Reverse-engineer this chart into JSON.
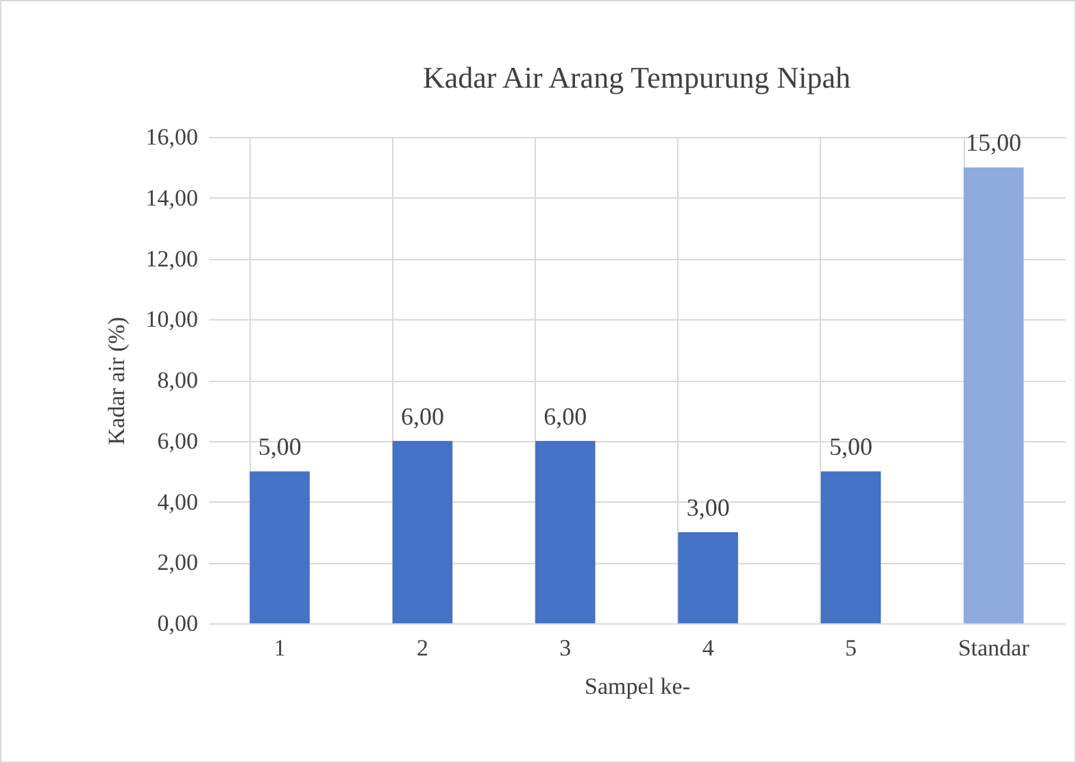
{
  "chart_data": {
    "type": "bar",
    "title": "Kadar Air Arang Tempurung Nipah",
    "xlabel": "Sampel ke-",
    "ylabel": "Kadar air (%)",
    "categories": [
      "1",
      "2",
      "3",
      "4",
      "5",
      "Standar"
    ],
    "values": [
      5,
      6,
      6,
      3,
      5,
      15
    ],
    "colors": [
      "#4472c4",
      "#4472c4",
      "#4472c4",
      "#4472c4",
      "#4472c4",
      "#8faadc"
    ],
    "value_labels": [
      "5,00",
      "6,00",
      "6,00",
      "3,00",
      "5,00",
      "15,00"
    ],
    "ylim": [
      0,
      16
    ],
    "yticks": [
      {
        "value": 0,
        "label": "0,00"
      },
      {
        "value": 2,
        "label": "2,00"
      },
      {
        "value": 4,
        "label": "4,00"
      },
      {
        "value": 6,
        "label": "6,00"
      },
      {
        "value": 8,
        "label": "8,00"
      },
      {
        "value": 10,
        "label": "10,00"
      },
      {
        "value": 12,
        "label": "12,00"
      },
      {
        "value": 14,
        "label": "14,00"
      },
      {
        "value": 16,
        "label": "16,00"
      }
    ],
    "grid": true
  }
}
